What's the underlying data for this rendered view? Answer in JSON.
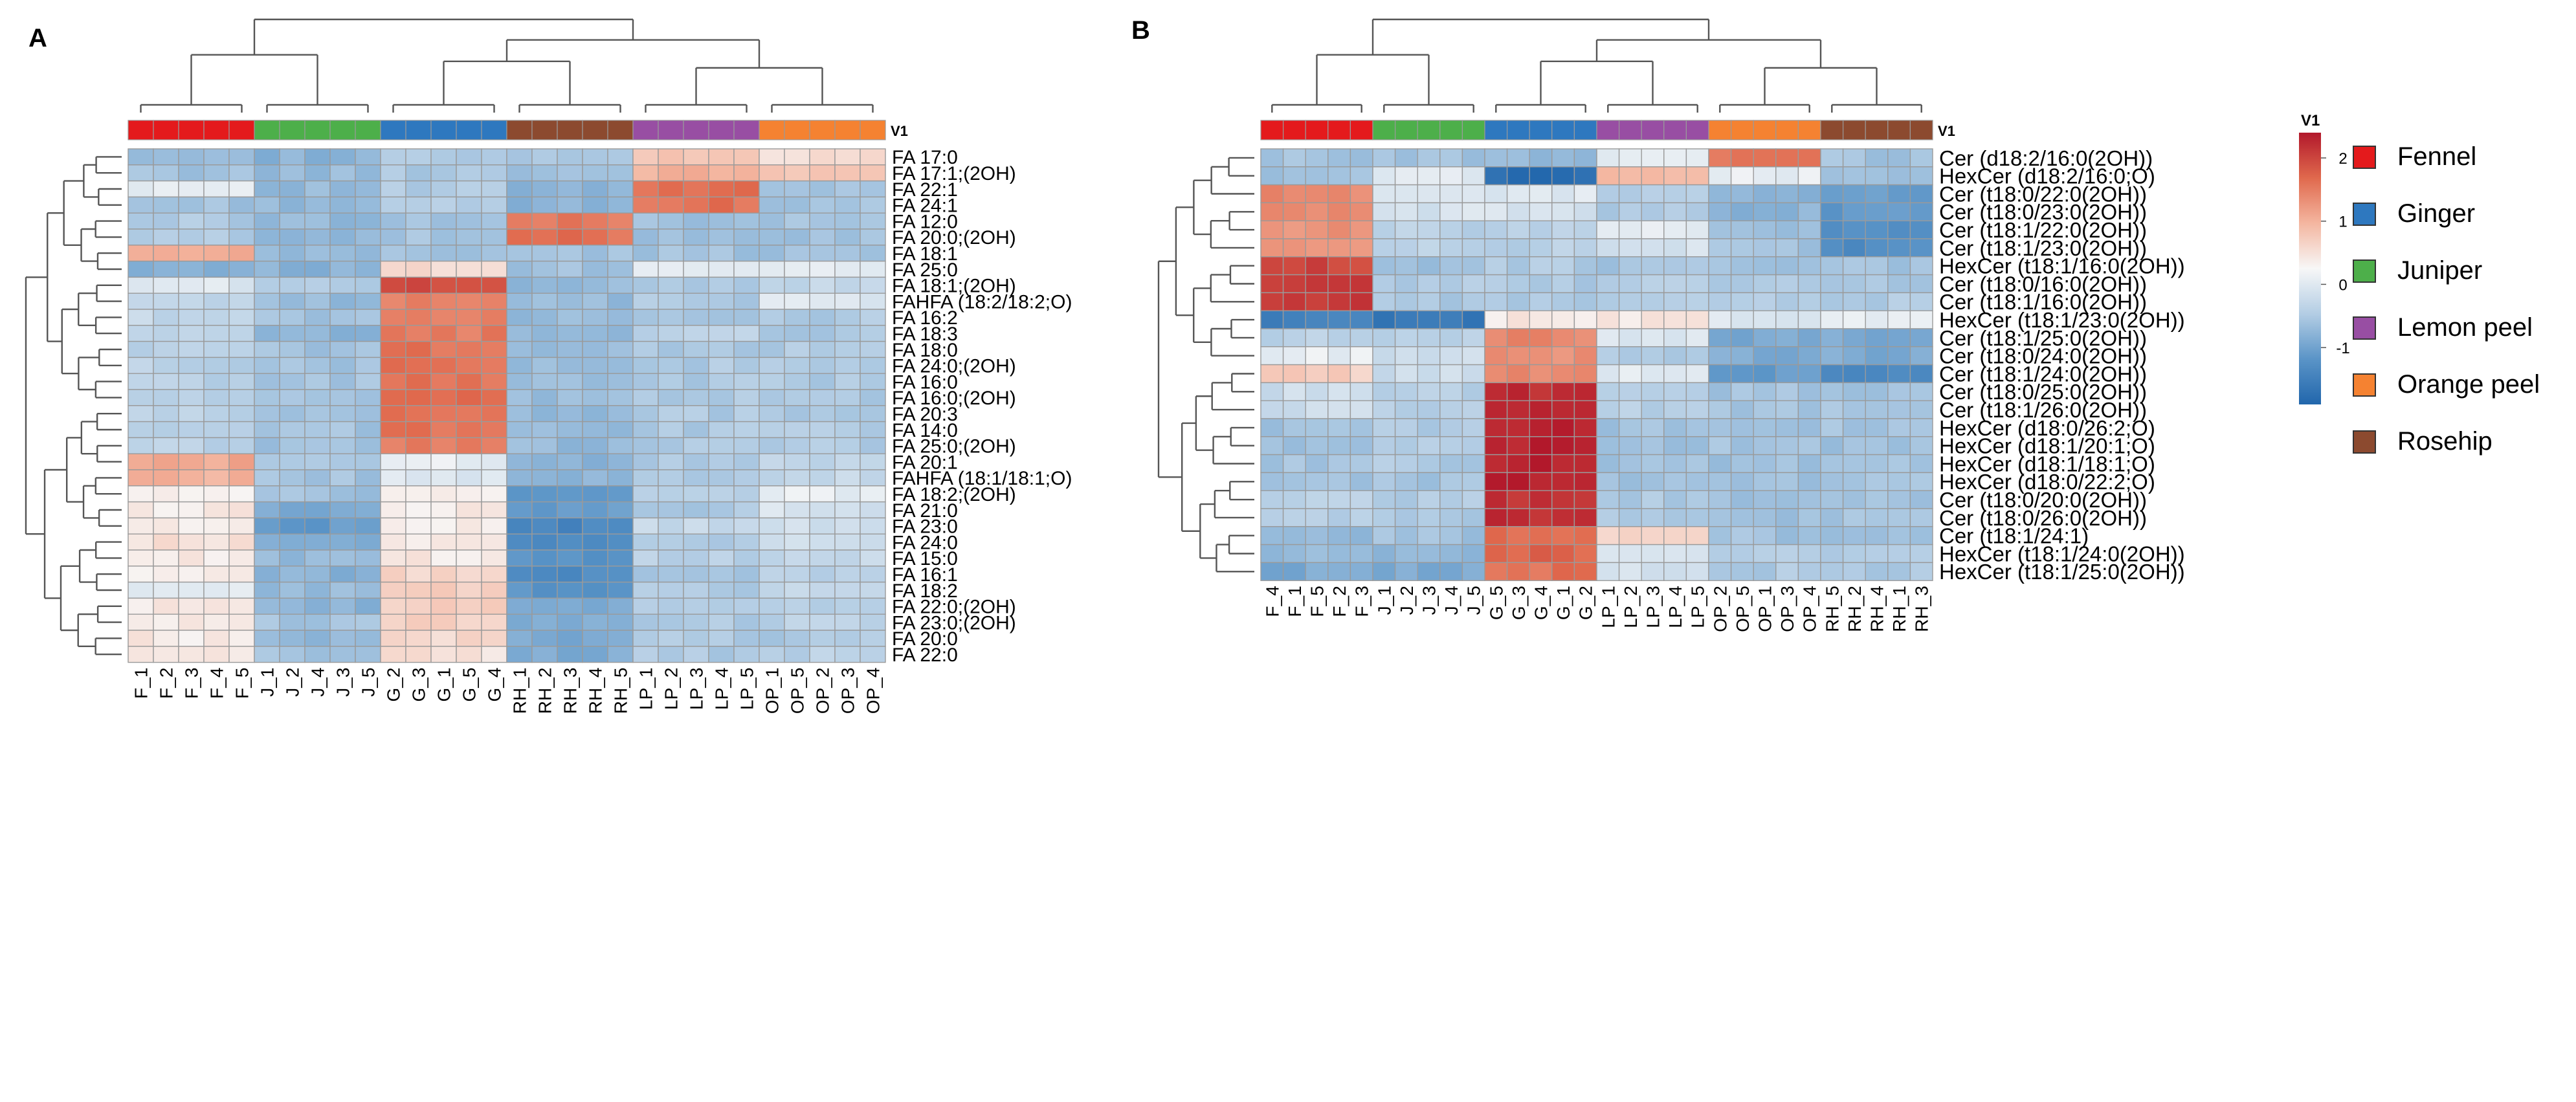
{
  "colors": {
    "scale": [
      "#2166ac",
      "#5a94c7",
      "#b3cde4",
      "#f7f7f7",
      "#f4b6a0",
      "#e0694d",
      "#b2182b"
    ],
    "groups": {
      "Fennel": "#e41a1c",
      "Ginger": "#2e78bf",
      "Juniper": "#4daf4a",
      "Lemon peel": "#984ea3",
      "Orange peel": "#f58231",
      "Rosehip": "#8c4a2f"
    },
    "grid": "#9a9a9a",
    "tree": "#555555"
  },
  "legend": {
    "scale_title": "V1",
    "ticks": [
      "2",
      "1",
      "0",
      "-1"
    ],
    "tick_values": [
      2,
      1,
      0,
      -1
    ],
    "range": [
      -1.9,
      2.4
    ],
    "groups_title": "V1",
    "groups": [
      "Fennel",
      "Ginger",
      "Juniper",
      "Lemon peel",
      "Orange peel",
      "Rosehip"
    ]
  },
  "chart_data": [
    {
      "type": "heatmap",
      "panel": "A",
      "title": "",
      "annotation_label": "V1",
      "columns": [
        "F_1",
        "F_2",
        "F_3",
        "F_4",
        "F_5",
        "J_1",
        "J_2",
        "J_4",
        "J_3",
        "J_5",
        "G_2",
        "G_3",
        "G_1",
        "G_5",
        "G_4",
        "RH_1",
        "RH_2",
        "RH_3",
        "RH_4",
        "RH_5",
        "LP_1",
        "LP_2",
        "LP_3",
        "LP_4",
        "LP_5",
        "OP_1",
        "OP_5",
        "OP_2",
        "OP_3",
        "OP_4"
      ],
      "column_groups": [
        "Fennel",
        "Fennel",
        "Fennel",
        "Fennel",
        "Fennel",
        "Juniper",
        "Juniper",
        "Juniper",
        "Juniper",
        "Juniper",
        "Ginger",
        "Ginger",
        "Ginger",
        "Ginger",
        "Ginger",
        "Rosehip",
        "Rosehip",
        "Rosehip",
        "Rosehip",
        "Rosehip",
        "Lemon peel",
        "Lemon peel",
        "Lemon peel",
        "Lemon peel",
        "Lemon peel",
        "Orange peel",
        "Orange peel",
        "Orange peel",
        "Orange peel",
        "Orange peel"
      ],
      "rows": [
        "FA 17:0",
        "FA 17:1;(2OH)",
        "FA 22:1",
        "FA 24:1",
        "FA 12:0",
        "FA 20:0;(2OH)",
        "FA 18:1",
        "FA 25:0",
        "FA 18:1;(2OH)",
        "FAHFA (18:2/18:2;O)",
        "FA 16:2",
        "FA 18:3",
        "FA 18:0",
        "FA 24:0;(2OH)",
        "FA 16:0",
        "FA 16:0;(2OH)",
        "FA 20:3",
        "FA 14:0",
        "FA 25:0;(2OH)",
        "FA 20:1",
        "FAHFA (18:1/18:1;O)",
        "FA 18:2;(2OH)",
        "FA 21:0",
        "FA 23:0",
        "FA 24:0",
        "FA 15:0",
        "FA 16:1",
        "FA 18:2",
        "FA 22:0;(2OH)",
        "FA 23:0;(2OH)",
        "FA 20:0",
        "FA 22:0"
      ],
      "group_values": [
        [
          -0.6,
          -0.8,
          -0.5,
          -0.6,
          0.8,
          0.5
        ],
        [
          -0.6,
          -0.7,
          -0.5,
          -0.6,
          1.0,
          0.8
        ],
        [
          0.1,
          -0.7,
          -0.5,
          -0.8,
          1.6,
          -0.6
        ],
        [
          -0.6,
          -0.7,
          -0.5,
          -0.8,
          1.6,
          -0.6
        ],
        [
          -0.5,
          -0.7,
          -0.6,
          1.5,
          -0.6,
          -0.6
        ],
        [
          -0.5,
          -0.7,
          -0.6,
          1.6,
          -0.6,
          -0.6
        ],
        [
          1.0,
          -0.7,
          -0.6,
          -0.6,
          -0.6,
          -0.6
        ],
        [
          -0.8,
          -0.8,
          0.6,
          -0.6,
          0.1,
          0.1
        ],
        [
          0.0,
          -0.5,
          1.9,
          -0.7,
          -0.5,
          -0.3
        ],
        [
          -0.3,
          -0.7,
          1.5,
          -0.7,
          -0.5,
          0.0
        ],
        [
          -0.3,
          -0.6,
          1.5,
          -0.7,
          -0.5,
          -0.5
        ],
        [
          -0.4,
          -0.8,
          1.5,
          -0.7,
          -0.4,
          -0.5
        ],
        [
          -0.4,
          -0.6,
          1.6,
          -0.7,
          -0.5,
          -0.5
        ],
        [
          -0.4,
          -0.6,
          1.6,
          -0.7,
          -0.5,
          -0.5
        ],
        [
          -0.4,
          -0.6,
          1.6,
          -0.7,
          -0.5,
          -0.5
        ],
        [
          -0.4,
          -0.6,
          1.6,
          -0.7,
          -0.5,
          -0.5
        ],
        [
          -0.4,
          -0.6,
          1.6,
          -0.7,
          -0.5,
          -0.5
        ],
        [
          -0.4,
          -0.6,
          1.6,
          -0.7,
          -0.5,
          -0.5
        ],
        [
          -0.4,
          -0.6,
          1.5,
          -0.7,
          -0.5,
          -0.5
        ],
        [
          1.1,
          -0.6,
          0.1,
          -0.8,
          -0.5,
          -0.3
        ],
        [
          1.0,
          -0.6,
          0.0,
          -0.8,
          -0.5,
          -0.3
        ],
        [
          0.3,
          -0.6,
          0.3,
          -1.2,
          -0.4,
          0.1
        ],
        [
          0.4,
          -0.9,
          0.4,
          -1.1,
          -0.5,
          -0.1
        ],
        [
          0.4,
          -1.1,
          0.4,
          -1.4,
          -0.3,
          -0.2
        ],
        [
          0.5,
          -0.9,
          0.4,
          -1.3,
          -0.5,
          -0.2
        ],
        [
          0.4,
          -0.7,
          0.4,
          -1.2,
          -0.4,
          -0.3
        ],
        [
          0.3,
          -0.8,
          0.6,
          -1.3,
          -0.6,
          -0.4
        ],
        [
          0.1,
          -0.7,
          0.7,
          -1.2,
          -0.5,
          -0.3
        ],
        [
          0.4,
          -0.8,
          0.7,
          -0.9,
          -0.5,
          -0.4
        ],
        [
          0.4,
          -0.6,
          0.7,
          -0.9,
          -0.5,
          -0.4
        ],
        [
          0.4,
          -0.7,
          0.6,
          -0.9,
          -0.5,
          -0.5
        ],
        [
          0.4,
          -0.6,
          0.5,
          -0.9,
          -0.5,
          -0.4
        ]
      ]
    },
    {
      "type": "heatmap",
      "panel": "B",
      "title": "",
      "annotation_label": "V1",
      "columns": [
        "F_4",
        "F_1",
        "F_5",
        "F_2",
        "F_3",
        "J_1",
        "J_2",
        "J_3",
        "J_4",
        "J_5",
        "G_5",
        "G_3",
        "G_4",
        "G_1",
        "G_2",
        "LP_1",
        "LP_2",
        "LP_3",
        "LP_4",
        "LP_5",
        "OP_2",
        "OP_5",
        "OP_1",
        "OP_3",
        "OP_4",
        "RH_5",
        "RH_2",
        "RH_4",
        "RH_1",
        "RH_3"
      ],
      "column_groups": [
        "Fennel",
        "Fennel",
        "Fennel",
        "Fennel",
        "Fennel",
        "Juniper",
        "Juniper",
        "Juniper",
        "Juniper",
        "Juniper",
        "Ginger",
        "Ginger",
        "Ginger",
        "Ginger",
        "Ginger",
        "Lemon peel",
        "Lemon peel",
        "Lemon peel",
        "Lemon peel",
        "Lemon peel",
        "Orange peel",
        "Orange peel",
        "Orange peel",
        "Orange peel",
        "Orange peel",
        "Rosehip",
        "Rosehip",
        "Rosehip",
        "Rosehip",
        "Rosehip"
      ],
      "rows": [
        "Cer (d18:2/16:0(2OH))",
        "HexCer (d18:2/16:0;O)",
        "Cer (t18:0/22:0(2OH))",
        "Cer (t18:0/23:0(2OH))",
        "Cer (t18:1/22:0(2OH))",
        "Cer (t18:1/23:0(2OH))",
        "HexCer (t18:1/16:0(2OH))",
        "Cer (t18:0/16:0(2OH))",
        "Cer (t18:1/16:0(2OH))",
        "HexCer (t18:1/23:0(2OH))",
        "Cer (t18:1/25:0(2OH))",
        "Cer (t18:0/24:0(2OH))",
        "Cer (t18:1/24:0(2OH))",
        "Cer (t18:0/25:0(2OH))",
        "Cer (t18:1/26:0(2OH))",
        "HexCer (d18:0/26:2;O)",
        "HexCer (d18:1/20:1;O)",
        "HexCer (d18:1/18:1;O)",
        "HexCer (d18:0/22:2;O)",
        "Cer (t18:0/20:0(2OH))",
        "Cer (t18:0/26:0(2OH))",
        "Cer (t18:1/24:1)",
        "HexCer (t18:1/24:0(2OH))",
        "HexCer (t18:1/25:0(2OH))"
      ],
      "group_values": [
        [
          -0.6,
          -0.6,
          -0.7,
          0.1,
          1.6,
          -0.6
        ],
        [
          -0.6,
          0.0,
          -1.8,
          0.9,
          0.1,
          -0.6
        ],
        [
          1.4,
          -0.1,
          0.0,
          -0.5,
          -0.8,
          -1.1
        ],
        [
          1.4,
          -0.1,
          -0.1,
          -0.5,
          -0.8,
          -1.1
        ],
        [
          1.3,
          -0.4,
          -0.4,
          0.1,
          -0.6,
          -1.3
        ],
        [
          1.2,
          -0.4,
          -0.4,
          -0.1,
          -0.6,
          -1.3
        ],
        [
          2.0,
          -0.6,
          -0.5,
          -0.6,
          -0.6,
          -0.6
        ],
        [
          2.1,
          -0.5,
          -0.5,
          -0.4,
          -0.5,
          -0.5
        ],
        [
          2.1,
          -0.5,
          -0.5,
          -0.4,
          -0.5,
          -0.5
        ],
        [
          -1.5,
          -1.6,
          0.4,
          0.4,
          0.0,
          0.1
        ],
        [
          -0.4,
          -0.4,
          1.4,
          0.0,
          -0.9,
          -0.9
        ],
        [
          0.1,
          -0.2,
          1.3,
          -0.5,
          -0.9,
          -0.9
        ],
        [
          0.7,
          -0.2,
          1.4,
          0.0,
          -1.1,
          -1.4
        ],
        [
          -0.2,
          -0.4,
          2.2,
          -0.5,
          -0.6,
          -0.6
        ],
        [
          -0.2,
          -0.4,
          2.2,
          -0.4,
          -0.6,
          -0.6
        ],
        [
          -0.6,
          -0.5,
          2.3,
          -0.6,
          -0.6,
          -0.6
        ],
        [
          -0.6,
          -0.5,
          2.3,
          -0.6,
          -0.6,
          -0.6
        ],
        [
          -0.6,
          -0.5,
          2.3,
          -0.6,
          -0.6,
          -0.6
        ],
        [
          -0.6,
          -0.6,
          2.3,
          -0.6,
          -0.6,
          -0.6
        ],
        [
          -0.4,
          -0.5,
          2.2,
          -0.5,
          -0.6,
          -0.6
        ],
        [
          -0.4,
          -0.5,
          2.2,
          -0.5,
          -0.6,
          -0.6
        ],
        [
          -0.7,
          -0.6,
          1.6,
          0.6,
          -0.6,
          -0.6
        ],
        [
          -0.7,
          -0.7,
          1.7,
          -0.1,
          -0.5,
          -0.5
        ],
        [
          -0.9,
          -0.9,
          1.6,
          -0.1,
          -0.5,
          -0.5
        ]
      ]
    }
  ]
}
